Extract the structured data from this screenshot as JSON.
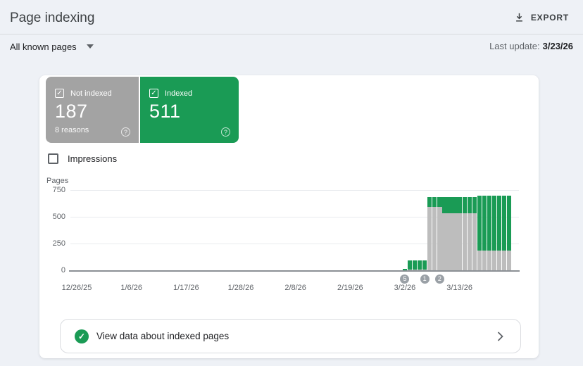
{
  "colors": {
    "accent_green": "#1a9b55",
    "card_gray": "#a3a3a3",
    "bar_gray": "#bdbdbd",
    "marker_gray": "#9aa0a6",
    "page_bg": "#eef1f6"
  },
  "icons": {
    "check_glyph": "✓",
    "help_glyph": "?"
  },
  "header": {
    "title": "Page indexing",
    "export_label": "EXPORT"
  },
  "filter_bar": {
    "scope_label": "All known pages",
    "last_update_label": "Last update:",
    "last_update_value": "3/23/26"
  },
  "summary_cards": {
    "not_indexed": {
      "label": "Not indexed",
      "value": "187",
      "reasons": "8 reasons"
    },
    "indexed": {
      "label": "Indexed",
      "value": "511"
    }
  },
  "impressions_toggle": {
    "label": "Impressions",
    "checked": false
  },
  "chart_data": {
    "type": "bar",
    "stacked": true,
    "title": "",
    "xlabel": "",
    "ylabel": "Pages",
    "ylim": [
      0,
      750
    ],
    "yticks": [
      750,
      500,
      250,
      0
    ],
    "xticks": [
      "12/26/25",
      "1/6/26",
      "1/17/26",
      "1/28/26",
      "2/8/26",
      "2/19/26",
      "3/2/26",
      "3/13/26"
    ],
    "legend": [
      "Not indexed",
      "Indexed"
    ],
    "legend_position": "none",
    "grid": true,
    "series_colors": {
      "not_indexed": "#bdbdbd",
      "indexed": "#1a9b55"
    },
    "bars": [
      {
        "date": "3/2/26",
        "not_indexed": 2,
        "indexed": 13
      },
      {
        "date": "3/3/26",
        "not_indexed": 8,
        "indexed": 82
      },
      {
        "date": "3/4/26",
        "not_indexed": 8,
        "indexed": 82
      },
      {
        "date": "3/5/26",
        "not_indexed": 8,
        "indexed": 82
      },
      {
        "date": "3/6/26",
        "not_indexed": 8,
        "indexed": 82
      },
      {
        "date": "3/7/26",
        "not_indexed": 590,
        "indexed": 94
      },
      {
        "date": "3/8/26",
        "not_indexed": 590,
        "indexed": 94
      },
      {
        "date": "3/9/26",
        "not_indexed": 590,
        "indexed": 94
      },
      {
        "date": "3/10/26",
        "not_indexed": 535,
        "indexed": 149
      },
      {
        "date": "3/11/26",
        "not_indexed": 535,
        "indexed": 149
      },
      {
        "date": "3/12/26",
        "not_indexed": 535,
        "indexed": 149
      },
      {
        "date": "3/13/26",
        "not_indexed": 535,
        "indexed": 149
      },
      {
        "date": "3/14/26",
        "not_indexed": 535,
        "indexed": 149
      },
      {
        "date": "3/15/26",
        "not_indexed": 535,
        "indexed": 149
      },
      {
        "date": "3/16/26",
        "not_indexed": 535,
        "indexed": 149
      },
      {
        "date": "3/17/26",
        "not_indexed": 187,
        "indexed": 511
      },
      {
        "date": "3/18/26",
        "not_indexed": 187,
        "indexed": 511
      },
      {
        "date": "3/19/26",
        "not_indexed": 187,
        "indexed": 511
      },
      {
        "date": "3/20/26",
        "not_indexed": 187,
        "indexed": 511
      },
      {
        "date": "3/21/26",
        "not_indexed": 187,
        "indexed": 511
      },
      {
        "date": "3/22/26",
        "not_indexed": 187,
        "indexed": 511
      },
      {
        "date": "3/23/26",
        "not_indexed": 187,
        "indexed": 511
      }
    ],
    "markers": [
      {
        "label": "5",
        "bar_index": 0,
        "date": "3/2/26"
      },
      {
        "label": "1",
        "bar_index": 4,
        "date": "3/6/26"
      },
      {
        "label": "2",
        "bar_index": 7,
        "date": "3/9/26"
      }
    ]
  },
  "footer_link": {
    "label": "View data about indexed pages"
  }
}
